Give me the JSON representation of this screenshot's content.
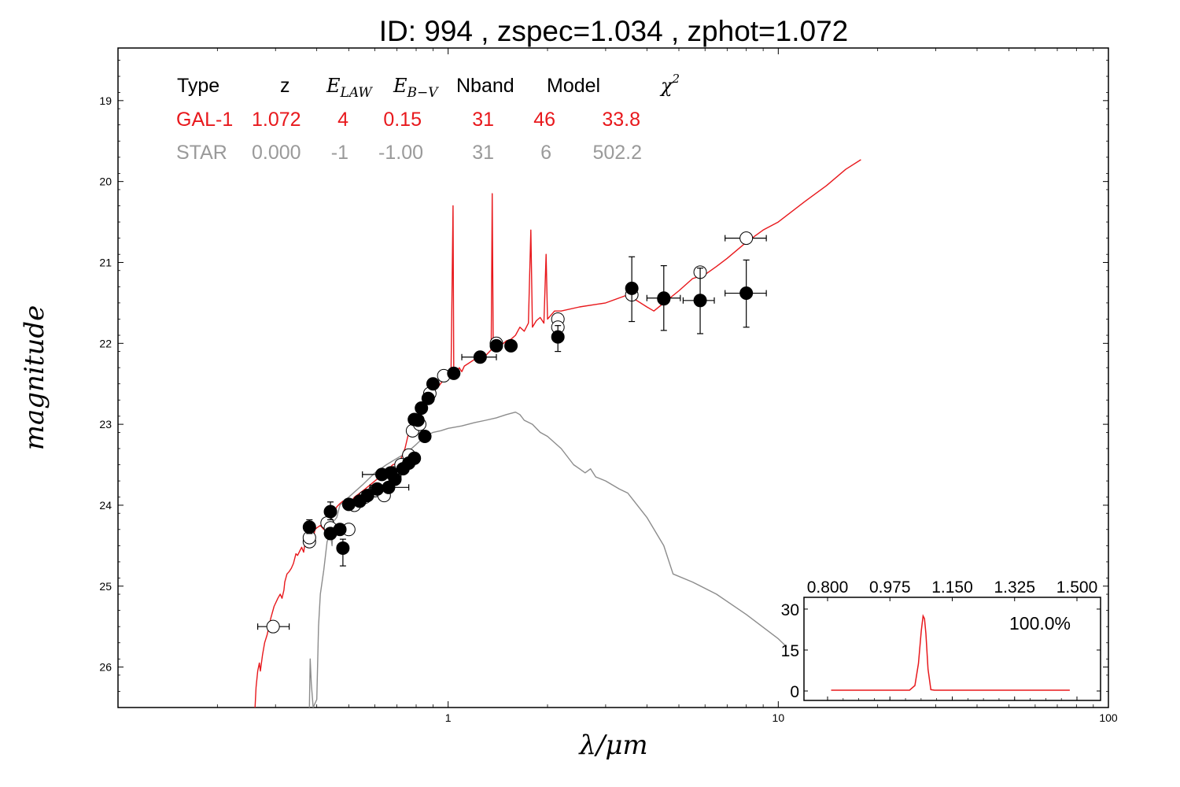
{
  "title": "ID:  994   , zspec=1.034 , zphot=1.072",
  "chart_data": {
    "type": "scatter",
    "title": "ID:  994   , zspec=1.034 , zphot=1.072",
    "xlabel": "λ/μm",
    "ylabel": "magnitude",
    "x_scale": "log",
    "xlim": [
      0.1,
      100
    ],
    "ylim": [
      26.5,
      18.35
    ],
    "x_tick_labels": [
      "1",
      "10",
      "100"
    ],
    "y_tick_labels": [
      "19",
      "20",
      "21",
      "22",
      "23",
      "24",
      "25",
      "26"
    ],
    "grid": false,
    "colors": {
      "galaxy": "#e8181c",
      "star": "#8c8c8c",
      "observed": "#000000"
    },
    "table": {
      "headers": {
        "type": "Type",
        "z": "z",
        "elaw_base": "E",
        "elaw_sub": "LAW",
        "ebv_base": "E",
        "ebv_sub": "B−V",
        "nband": "Nband",
        "model": "Model",
        "chi_base": "χ",
        "chi_sup": "2"
      },
      "rows": [
        {
          "type": "GAL-1",
          "z": "1.072",
          "elaw": "4",
          "ebv": "0.15",
          "nband": "31",
          "model": "46",
          "chi2": "33.8"
        },
        {
          "type": "STAR",
          "z": "0.000",
          "elaw": "-1",
          "ebv": "-1.00",
          "nband": "31",
          "model": "6",
          "chi2": "502.2"
        }
      ]
    },
    "series": [
      {
        "kind": "line",
        "color": "#e8181c",
        "points": [
          [
            0.26,
            26.5
          ],
          [
            0.262,
            26.25
          ],
          [
            0.265,
            26.05
          ],
          [
            0.268,
            25.95
          ],
          [
            0.27,
            26.05
          ],
          [
            0.274,
            25.85
          ],
          [
            0.278,
            25.7
          ],
          [
            0.283,
            25.6
          ],
          [
            0.29,
            25.4
          ],
          [
            0.297,
            25.25
          ],
          [
            0.305,
            25.15
          ],
          [
            0.31,
            25.1
          ],
          [
            0.314,
            25.15
          ],
          [
            0.318,
            25.05
          ],
          [
            0.32,
            24.95
          ],
          [
            0.325,
            24.85
          ],
          [
            0.33,
            24.82
          ],
          [
            0.335,
            24.78
          ],
          [
            0.34,
            24.72
          ],
          [
            0.346,
            24.6
          ],
          [
            0.35,
            24.62
          ],
          [
            0.357,
            24.55
          ],
          [
            0.36,
            24.52
          ],
          [
            0.365,
            24.58
          ],
          [
            0.37,
            24.42
          ],
          [
            0.376,
            24.45
          ],
          [
            0.38,
            24.38
          ],
          [
            0.385,
            24.35
          ],
          [
            0.39,
            24.42
          ],
          [
            0.395,
            24.3
          ],
          [
            0.4,
            24.28
          ],
          [
            0.41,
            24.25
          ],
          [
            0.42,
            24.3
          ],
          [
            0.43,
            24.2
          ],
          [
            0.44,
            24.15
          ],
          [
            0.45,
            24.1
          ],
          [
            0.46,
            24.02
          ],
          [
            0.47,
            23.98
          ],
          [
            0.48,
            23.95
          ],
          [
            0.49,
            23.97
          ],
          [
            0.5,
            23.93
          ],
          [
            0.51,
            23.95
          ],
          [
            0.52,
            23.9
          ],
          [
            0.54,
            23.85
          ],
          [
            0.56,
            23.8
          ],
          [
            0.58,
            23.75
          ],
          [
            0.6,
            23.7
          ],
          [
            0.62,
            23.65
          ],
          [
            0.64,
            23.6
          ],
          [
            0.66,
            23.55
          ],
          [
            0.68,
            23.5
          ],
          [
            0.7,
            23.48
          ],
          [
            0.72,
            23.42
          ],
          [
            0.74,
            23.3
          ],
          [
            0.76,
            23.1
          ],
          [
            0.78,
            23.0
          ],
          [
            0.8,
            22.9
          ],
          [
            0.82,
            22.85
          ],
          [
            0.84,
            22.75
          ],
          [
            0.86,
            22.72
          ],
          [
            0.88,
            22.62
          ],
          [
            0.9,
            22.58
          ],
          [
            0.92,
            22.55
          ],
          [
            0.94,
            22.52
          ],
          [
            0.96,
            22.47
          ],
          [
            0.98,
            22.45
          ],
          [
            1.0,
            22.42
          ],
          [
            1.02,
            22.4
          ],
          [
            1.035,
            20.3
          ],
          [
            1.04,
            22.32
          ],
          [
            1.06,
            22.38
          ],
          [
            1.08,
            22.3
          ],
          [
            1.1,
            22.35
          ],
          [
            1.12,
            22.28
          ],
          [
            1.15,
            22.25
          ],
          [
            1.2,
            22.2
          ],
          [
            1.25,
            22.18
          ],
          [
            1.3,
            22.15
          ],
          [
            1.35,
            22.08
          ],
          [
            1.36,
            20.15
          ],
          [
            1.37,
            22.05
          ],
          [
            1.4,
            22.0
          ],
          [
            1.45,
            22.02
          ],
          [
            1.5,
            21.97
          ],
          [
            1.55,
            21.95
          ],
          [
            1.6,
            21.9
          ],
          [
            1.65,
            21.8
          ],
          [
            1.7,
            21.85
          ],
          [
            1.75,
            21.75
          ],
          [
            1.78,
            20.6
          ],
          [
            1.8,
            21.8
          ],
          [
            1.85,
            21.72
          ],
          [
            1.9,
            21.68
          ],
          [
            1.95,
            21.75
          ],
          [
            1.98,
            20.9
          ],
          [
            2.0,
            21.7
          ],
          [
            2.05,
            21.65
          ],
          [
            2.1,
            21.6
          ],
          [
            2.2,
            21.6
          ],
          [
            2.5,
            21.55
          ],
          [
            3.0,
            21.5
          ],
          [
            3.5,
            21.4
          ],
          [
            4.0,
            21.55
          ],
          [
            4.2,
            21.6
          ],
          [
            4.5,
            21.5
          ],
          [
            5.0,
            21.35
          ],
          [
            5.5,
            21.2
          ],
          [
            6.0,
            21.15
          ],
          [
            6.5,
            21.05
          ],
          [
            7.0,
            20.95
          ],
          [
            8.0,
            20.75
          ],
          [
            9.0,
            20.6
          ],
          [
            10.0,
            20.5
          ],
          [
            12.0,
            20.25
          ],
          [
            14.0,
            20.05
          ],
          [
            16.0,
            19.85
          ],
          [
            17.8,
            19.73
          ]
        ]
      },
      {
        "kind": "line",
        "color": "#8c8c8c",
        "points": [
          [
            0.38,
            26.5
          ],
          [
            0.382,
            25.9
          ],
          [
            0.385,
            26.2
          ],
          [
            0.39,
            26.5
          ],
          [
            0.4,
            26.4
          ],
          [
            0.405,
            25.5
          ],
          [
            0.41,
            25.1
          ],
          [
            0.42,
            24.8
          ],
          [
            0.43,
            24.45
          ],
          [
            0.44,
            24.35
          ],
          [
            0.445,
            24.5
          ],
          [
            0.45,
            24.2
          ],
          [
            0.46,
            24.15
          ],
          [
            0.47,
            24.0
          ],
          [
            0.5,
            23.9
          ],
          [
            0.55,
            23.75
          ],
          [
            0.6,
            23.6
          ],
          [
            0.65,
            23.5
          ],
          [
            0.7,
            23.42
          ],
          [
            0.75,
            23.35
          ],
          [
            0.8,
            23.25
          ],
          [
            0.85,
            23.15
          ],
          [
            0.9,
            23.1
          ],
          [
            0.95,
            23.08
          ],
          [
            1.0,
            23.05
          ],
          [
            1.1,
            23.02
          ],
          [
            1.2,
            22.98
          ],
          [
            1.3,
            22.95
          ],
          [
            1.4,
            22.92
          ],
          [
            1.5,
            22.88
          ],
          [
            1.6,
            22.85
          ],
          [
            1.65,
            22.88
          ],
          [
            1.7,
            22.95
          ],
          [
            1.8,
            23.0
          ],
          [
            1.9,
            23.1
          ],
          [
            2.0,
            23.15
          ],
          [
            2.2,
            23.3
          ],
          [
            2.4,
            23.5
          ],
          [
            2.5,
            23.55
          ],
          [
            2.6,
            23.6
          ],
          [
            2.7,
            23.55
          ],
          [
            2.8,
            23.65
          ],
          [
            3.0,
            23.7
          ],
          [
            3.3,
            23.8
          ],
          [
            3.5,
            23.85
          ],
          [
            4.0,
            24.15
          ],
          [
            4.5,
            24.5
          ],
          [
            4.8,
            24.85
          ],
          [
            5.5,
            24.95
          ],
          [
            6.5,
            25.1
          ],
          [
            8.0,
            25.35
          ],
          [
            10.0,
            25.65
          ],
          [
            10.6,
            25.75
          ]
        ]
      },
      {
        "kind": "markers",
        "name": "model",
        "marker": "open-circle",
        "points": [
          {
            "x": 0.295,
            "y": 25.5,
            "xlo": 0.265,
            "xhi": 0.33
          },
          {
            "x": 0.38,
            "y": 24.45
          },
          {
            "x": 0.38,
            "y": 24.4
          },
          {
            "x": 0.43,
            "y": 24.22
          },
          {
            "x": 0.44,
            "y": 24.28
          },
          {
            "x": 0.5,
            "y": 24.3
          },
          {
            "x": 0.52,
            "y": 24.0
          },
          {
            "x": 0.56,
            "y": 23.9
          },
          {
            "x": 0.6,
            "y": 23.82
          },
          {
            "x": 0.64,
            "y": 23.88
          },
          {
            "x": 0.68,
            "y": 23.6
          },
          {
            "x": 0.72,
            "y": 23.5
          },
          {
            "x": 0.76,
            "y": 23.38
          },
          {
            "x": 0.78,
            "y": 23.08
          },
          {
            "x": 0.82,
            "y": 23.0
          },
          {
            "x": 0.88,
            "y": 22.62
          },
          {
            "x": 0.97,
            "y": 22.4
          },
          {
            "x": 1.4,
            "y": 22.0
          },
          {
            "x": 2.15,
            "y": 21.7
          },
          {
            "x": 2.15,
            "y": 21.8
          },
          {
            "x": 3.6,
            "y": 21.4
          },
          {
            "x": 4.5,
            "y": 21.45
          },
          {
            "x": 5.8,
            "y": 21.12
          },
          {
            "x": 8.0,
            "y": 20.7,
            "xlo": 6.9,
            "xhi": 9.2
          }
        ]
      },
      {
        "kind": "markers",
        "name": "observed",
        "marker": "filled-circle",
        "points": [
          {
            "x": 0.38,
            "y": 24.27,
            "ylo": 24.35,
            "yhi": 24.18
          },
          {
            "x": 0.44,
            "y": 24.08,
            "ylo": 24.18,
            "yhi": 23.96
          },
          {
            "x": 0.44,
            "y": 24.35
          },
          {
            "x": 0.47,
            "y": 24.3
          },
          {
            "x": 0.48,
            "y": 24.53,
            "ylo": 24.75,
            "yhi": 24.42
          },
          {
            "x": 0.5,
            "y": 23.99
          },
          {
            "x": 0.54,
            "y": 23.95
          },
          {
            "x": 0.57,
            "y": 23.88
          },
          {
            "x": 0.61,
            "y": 23.8
          },
          {
            "x": 0.63,
            "y": 23.62,
            "xlo": 0.55,
            "xhi": 0.72
          },
          {
            "x": 0.66,
            "y": 23.78,
            "xlo": 0.58,
            "xhi": 0.76
          },
          {
            "x": 0.67,
            "y": 23.6
          },
          {
            "x": 0.69,
            "y": 23.68
          },
          {
            "x": 0.73,
            "y": 23.55
          },
          {
            "x": 0.76,
            "y": 23.48
          },
          {
            "x": 0.79,
            "y": 23.42
          },
          {
            "x": 0.79,
            "y": 22.94
          },
          {
            "x": 0.81,
            "y": 22.95
          },
          {
            "x": 0.83,
            "y": 22.8
          },
          {
            "x": 0.85,
            "y": 23.15
          },
          {
            "x": 0.87,
            "y": 22.68
          },
          {
            "x": 0.9,
            "y": 22.5
          },
          {
            "x": 1.04,
            "y": 22.37
          },
          {
            "x": 1.25,
            "y": 22.17,
            "xlo": 1.1,
            "xhi": 1.4
          },
          {
            "x": 1.4,
            "y": 22.03
          },
          {
            "x": 1.55,
            "y": 22.03
          },
          {
            "x": 2.15,
            "y": 21.92,
            "ylo": 22.1,
            "yhi": 21.78
          },
          {
            "x": 3.6,
            "y": 21.32,
            "ylo": 21.73,
            "yhi": 20.93
          },
          {
            "x": 4.5,
            "y": 21.44,
            "ylo": 21.84,
            "yhi": 21.04,
            "xlo": 4.0,
            "xhi": 5.05
          },
          {
            "x": 5.8,
            "y": 21.47,
            "ylo": 21.88,
            "yhi": 21.07,
            "xlo": 5.15,
            "xhi": 6.4
          },
          {
            "x": 8.0,
            "y": 21.38,
            "ylo": 21.8,
            "yhi": 20.97,
            "xlo": 6.9,
            "xhi": 9.2
          }
        ]
      }
    ],
    "inset": {
      "type": "line",
      "x_tick_labels": [
        "0.800",
        "0.975",
        "1.150",
        "1.325",
        "1.500"
      ],
      "y_tick_labels": [
        "30",
        "15",
        "0"
      ],
      "xlim": [
        0.8,
        1.5
      ],
      "ylim": [
        0,
        32
      ],
      "annotation": "100.0%",
      "color": "#e8181c",
      "points": [
        [
          0.81,
          0.3
        ],
        [
          0.9,
          0.3
        ],
        [
          0.98,
          0.3
        ],
        [
          1.03,
          0.3
        ],
        [
          1.045,
          2.0
        ],
        [
          1.055,
          10.0
        ],
        [
          1.063,
          22.0
        ],
        [
          1.068,
          27.5
        ],
        [
          1.072,
          26.5
        ],
        [
          1.076,
          21.0
        ],
        [
          1.082,
          8.0
        ],
        [
          1.09,
          0.5
        ],
        [
          1.1,
          0.3
        ],
        [
          1.2,
          0.3
        ],
        [
          1.3,
          0.3
        ],
        [
          1.4,
          0.3
        ],
        [
          1.48,
          0.3
        ]
      ]
    }
  }
}
